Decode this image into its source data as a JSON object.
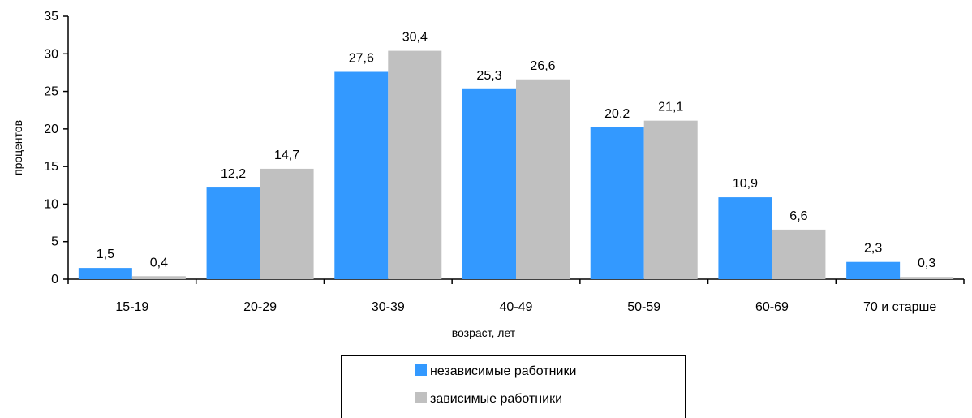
{
  "chart_data": {
    "type": "bar",
    "categories": [
      "15-19",
      "20-29",
      "30-39",
      "40-49",
      "50-59",
      "60-69",
      "70 и старше"
    ],
    "series": [
      {
        "name": "независимые работники",
        "values": [
          1.5,
          12.2,
          27.6,
          25.3,
          20.2,
          10.9,
          2.3
        ],
        "labels": [
          "1,5",
          "12,2",
          "27,6",
          "25,3",
          "20,2",
          "10,9",
          "2,3"
        ],
        "color": "#3399ff"
      },
      {
        "name": "зависимые работники",
        "values": [
          0.4,
          14.7,
          30.4,
          26.6,
          21.1,
          6.6,
          0.3
        ],
        "labels": [
          "0,4",
          "14,7",
          "30,4",
          "26,6",
          "21,1",
          "6,6",
          "0,3"
        ],
        "color": "#c0c0c0"
      }
    ],
    "xlabel": "возраст, лет",
    "ylabel": "процентов",
    "ylim": [
      0,
      35
    ],
    "yticks": [
      0,
      5,
      10,
      15,
      20,
      25,
      30,
      35
    ],
    "grid": false,
    "legend_position": "bottom"
  }
}
